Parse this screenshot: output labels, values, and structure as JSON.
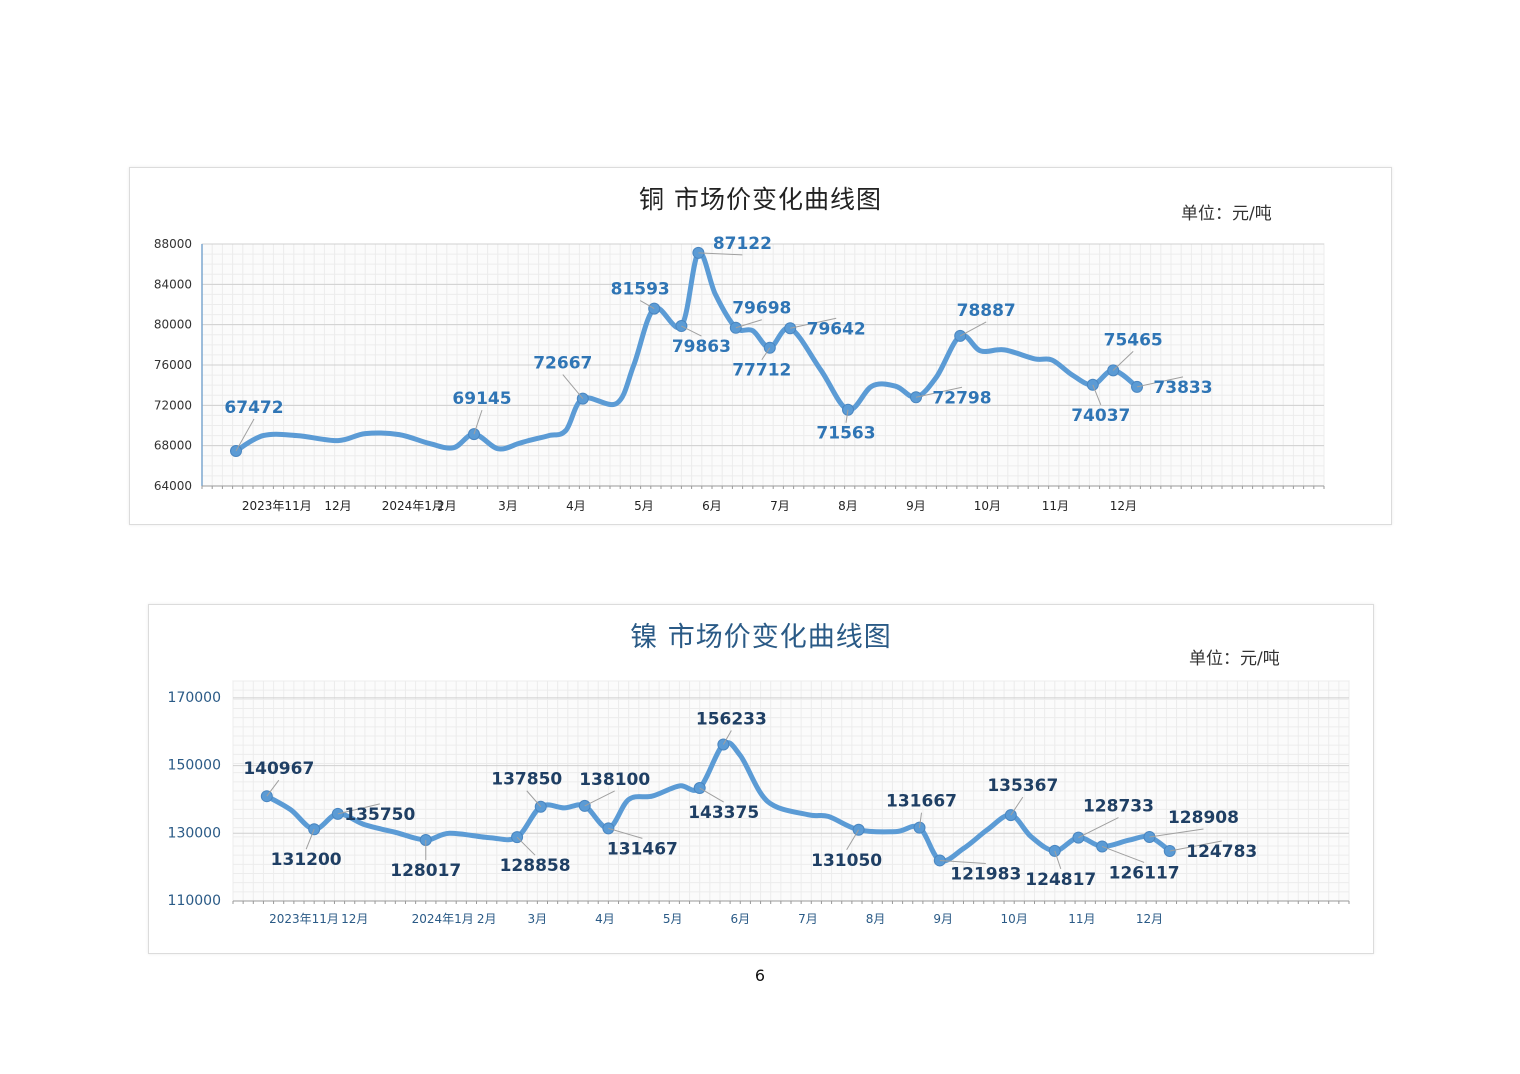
{
  "page": {
    "number": "6"
  },
  "chart_data": [
    {
      "id": "copper",
      "type": "line",
      "title": "铜  市场价变化曲线图",
      "unit": "单位：元/吨",
      "ylim": [
        64000,
        88000
      ],
      "yticks": [
        64000,
        68000,
        72000,
        76000,
        80000,
        84000,
        88000
      ],
      "x_tick_labels": [
        {
          "label": "2023年11月",
          "x": 0.6
        },
        {
          "label": "12月",
          "x": 1.5
        },
        {
          "label": "2024年1月",
          "x": 2.6
        },
        {
          "label": "2月",
          "x": 3.1
        },
        {
          "label": "3月",
          "x": 4.0
        },
        {
          "label": "4月",
          "x": 5.0
        },
        {
          "label": "5月",
          "x": 6.0
        },
        {
          "label": "6月",
          "x": 7.0
        },
        {
          "label": "7月",
          "x": 8.0
        },
        {
          "label": "8月",
          "x": 9.0
        },
        {
          "label": "9月",
          "x": 10.0
        },
        {
          "label": "10月",
          "x": 11.05
        },
        {
          "label": "11月",
          "x": 12.05
        },
        {
          "label": "12月",
          "x": 13.05
        }
      ],
      "xlim": [
        -0.5,
        16.0
      ],
      "line_color": "#5b9bd5",
      "label_color": "#2f75b5",
      "series": [
        {
          "x": [
            0.0,
            0.4,
            0.9,
            1.5,
            1.9,
            2.4,
            2.85,
            3.2,
            3.5,
            3.85,
            4.15,
            4.3,
            4.6,
            4.85,
            5.1,
            5.6,
            5.85,
            6.15,
            6.55,
            6.8,
            7.05,
            7.35,
            7.6,
            7.85,
            8.15,
            8.6,
            9.0,
            9.35,
            9.7,
            10.0,
            10.3,
            10.65,
            10.95,
            11.3,
            11.75,
            12.0,
            12.3,
            12.6,
            12.9,
            13.25
          ],
          "y": [
            67472,
            69000,
            69000,
            68500,
            69200,
            69100,
            68200,
            67800,
            69145,
            67700,
            68200,
            68500,
            69000,
            69500,
            72667,
            72200,
            76000,
            81593,
            79863,
            87122,
            83000,
            79698,
            79400,
            77712,
            79642,
            75500,
            71563,
            73900,
            73900,
            72798,
            74800,
            78887,
            77400,
            77500,
            76600,
            76500,
            75000,
            74037,
            75465,
            73833
          ]
        }
      ],
      "data_labels": [
        {
          "i": 0,
          "text": "67472"
        },
        {
          "i": 8,
          "text": "69145"
        },
        {
          "i": 14,
          "text": "72667"
        },
        {
          "i": 17,
          "text": "81593"
        },
        {
          "i": 18,
          "text": "79863"
        },
        {
          "i": 19,
          "text": "87122"
        },
        {
          "i": 21,
          "text": "79698"
        },
        {
          "i": 23,
          "text": "77712"
        },
        {
          "i": 24,
          "text": "79642"
        },
        {
          "i": 26,
          "text": "71563"
        },
        {
          "i": 29,
          "text": "72798"
        },
        {
          "i": 31,
          "text": "78887"
        },
        {
          "i": 37,
          "text": "74037"
        },
        {
          "i": 38,
          "text": "75465"
        },
        {
          "i": 39,
          "text": "73833"
        }
      ],
      "marker_indices": [
        0,
        8,
        14,
        17,
        18,
        19,
        21,
        23,
        24,
        26,
        29,
        31,
        37,
        38,
        39
      ],
      "grid": true
    },
    {
      "id": "nickel",
      "type": "line",
      "title": "镍  市场价变化曲线图",
      "unit": "单位：元/吨",
      "ylim": [
        110000,
        175000
      ],
      "yticks": [
        110000,
        130000,
        150000,
        170000
      ],
      "x_tick_labels": [
        {
          "label": "2023年11月",
          "x": 0.55
        },
        {
          "label": "12月",
          "x": 1.3
        },
        {
          "label": "2024年1月",
          "x": 2.6
        },
        {
          "label": "2月",
          "x": 3.25
        },
        {
          "label": "3月",
          "x": 4.0
        },
        {
          "label": "4月",
          "x": 5.0
        },
        {
          "label": "5月",
          "x": 6.0
        },
        {
          "label": "6月",
          "x": 7.0
        },
        {
          "label": "7月",
          "x": 8.0
        },
        {
          "label": "8月",
          "x": 9.0
        },
        {
          "label": "9月",
          "x": 10.0
        },
        {
          "label": "10月",
          "x": 11.05
        },
        {
          "label": "11月",
          "x": 12.05
        },
        {
          "label": "12月",
          "x": 13.05
        }
      ],
      "xlim": [
        -0.5,
        16.0
      ],
      "line_color": "#5b9bd5",
      "label_color": "#1f3f64",
      "series": [
        {
          "x": [
            0.0,
            0.35,
            0.7,
            1.05,
            1.45,
            1.9,
            2.35,
            2.7,
            3.3,
            3.7,
            4.05,
            4.4,
            4.7,
            5.05,
            5.35,
            5.7,
            6.1,
            6.4,
            6.75,
            7.0,
            7.4,
            8.0,
            8.3,
            8.75,
            9.3,
            9.65,
            9.95,
            10.3,
            10.65,
            11.0,
            11.3,
            11.65,
            12.0,
            12.35,
            12.75,
            13.05,
            13.35
          ],
          "y": [
            140967,
            137000,
            131200,
            135750,
            132500,
            130300,
            128017,
            130000,
            128700,
            128858,
            137850,
            137500,
            138100,
            131467,
            140000,
            141000,
            144000,
            143375,
            156233,
            153000,
            139500,
            135500,
            135000,
            131050,
            130500,
            131667,
            121983,
            125500,
            131000,
            135367,
            129000,
            124817,
            128733,
            126117,
            128000,
            128908,
            124783
          ]
        }
      ],
      "data_labels": [
        {
          "i": 0,
          "text": "140967"
        },
        {
          "i": 2,
          "text": "131200"
        },
        {
          "i": 3,
          "text": "135750"
        },
        {
          "i": 6,
          "text": "128017"
        },
        {
          "i": 9,
          "text": "128858"
        },
        {
          "i": 10,
          "text": "137850"
        },
        {
          "i": 12,
          "text": "138100"
        },
        {
          "i": 13,
          "text": "131467"
        },
        {
          "i": 17,
          "text": "143375"
        },
        {
          "i": 18,
          "text": "156233"
        },
        {
          "i": 23,
          "text": "131050"
        },
        {
          "i": 25,
          "text": "131667"
        },
        {
          "i": 26,
          "text": "121983"
        },
        {
          "i": 29,
          "text": "135367"
        },
        {
          "i": 31,
          "text": "124817"
        },
        {
          "i": 32,
          "text": "128733"
        },
        {
          "i": 33,
          "text": "126117"
        },
        {
          "i": 35,
          "text": "128908"
        },
        {
          "i": 36,
          "text": "124783"
        }
      ],
      "marker_indices": [
        0,
        2,
        3,
        6,
        9,
        10,
        12,
        13,
        17,
        18,
        23,
        25,
        26,
        29,
        31,
        32,
        33,
        35,
        36
      ],
      "grid": true
    }
  ]
}
